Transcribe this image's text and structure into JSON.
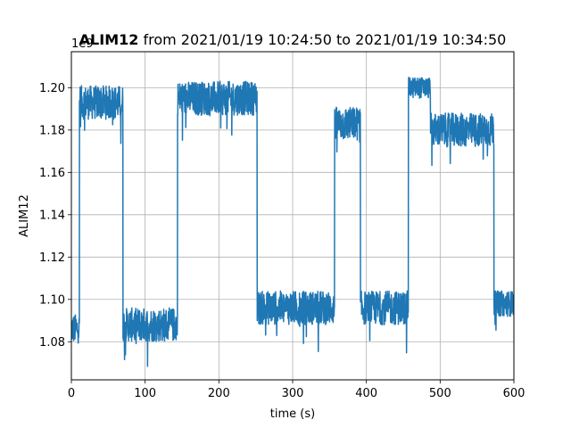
{
  "chart_data": {
    "type": "line",
    "title_bold": "ALIM12",
    "title_rest": " from 2021/01/19 10:24:50 to 2021/01/19 10:34:50",
    "xlabel": "time (s)",
    "ylabel": "ALIM12",
    "y_offset_label": "1e9",
    "xlim": [
      0,
      600
    ],
    "ylim": [
      1.062,
      1.217
    ],
    "x_ticks": [
      0,
      100,
      200,
      300,
      400,
      500,
      600
    ],
    "x_tick_labels": [
      "0",
      "100",
      "200",
      "300",
      "400",
      "500",
      "600"
    ],
    "y_ticks": [
      1.08,
      1.1,
      1.12,
      1.14,
      1.16,
      1.18,
      1.2
    ],
    "y_tick_labels": [
      "1.08",
      "1.10",
      "1.12",
      "1.14",
      "1.16",
      "1.18",
      "1.20"
    ],
    "grid": true,
    "line_color": "#1f77b4",
    "segments": [
      {
        "x_start": 0,
        "x_end": 11,
        "level": 1.086,
        "spread": 0.007
      },
      {
        "x_start": 11,
        "x_end": 70,
        "level": 1.193,
        "spread": 0.008
      },
      {
        "x_start": 70,
        "x_end": 144,
        "level": 1.088,
        "spread": 0.008
      },
      {
        "x_start": 144,
        "x_end": 252,
        "level": 1.195,
        "spread": 0.008
      },
      {
        "x_start": 252,
        "x_end": 357,
        "level": 1.096,
        "spread": 0.008
      },
      {
        "x_start": 357,
        "x_end": 392,
        "level": 1.183,
        "spread": 0.008
      },
      {
        "x_start": 392,
        "x_end": 457,
        "level": 1.096,
        "spread": 0.008
      },
      {
        "x_start": 457,
        "x_end": 487,
        "level": 1.2,
        "spread": 0.005
      },
      {
        "x_start": 487,
        "x_end": 573,
        "level": 1.18,
        "spread": 0.008
      },
      {
        "x_start": 573,
        "x_end": 600,
        "level": 1.098,
        "spread": 0.006
      }
    ]
  }
}
